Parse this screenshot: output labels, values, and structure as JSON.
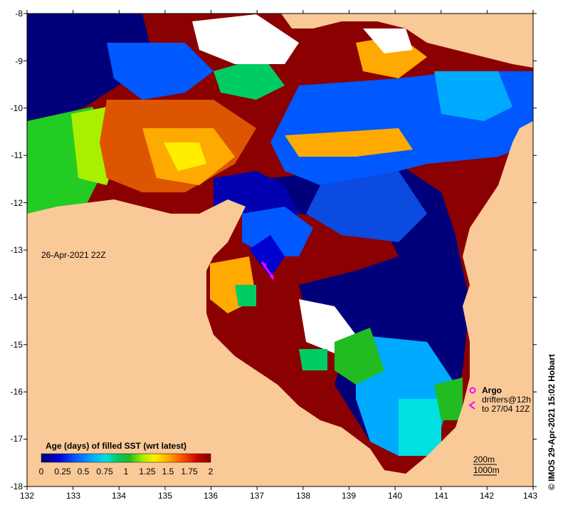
{
  "map": {
    "timestamp": "26-Apr-2021 22Z",
    "credit": "© IMOS 29-Apr-2021 15:02 Hobart",
    "x_ticks": [
      "132",
      "133",
      "134",
      "135",
      "136",
      "137",
      "138",
      "139",
      "140",
      "141",
      "142",
      "143"
    ],
    "y_ticks": [
      "-8",
      "-9",
      "-10",
      "-11",
      "-12",
      "-13",
      "-14",
      "-15",
      "-16",
      "-17",
      "-18"
    ],
    "colors": {
      "land": "#fac998",
      "white_gap": "#ffffff",
      "argo": "#ff00ff",
      "age_scale": [
        "#00007a",
        "#0000d0",
        "#0058ff",
        "#00aaff",
        "#00e0e0",
        "#00cc66",
        "#22bb22",
        "#aaee00",
        "#ffee00",
        "#ffaa00",
        "#ff5500",
        "#cc0000",
        "#880000"
      ]
    },
    "legend": {
      "argo_label": "Argo",
      "drifter_label": "drifters@12h",
      "drifter_range": "to 27/04 12Z"
    },
    "contours": {
      "line1": "200m",
      "line2": "1000m"
    },
    "colorbar": {
      "title": "Age (days) of filled SST (wrt latest)",
      "ticks": [
        "0",
        "0.25",
        "0.5",
        "0.75",
        "1",
        "1.25",
        "1.5",
        "1.75",
        "2"
      ]
    }
  }
}
